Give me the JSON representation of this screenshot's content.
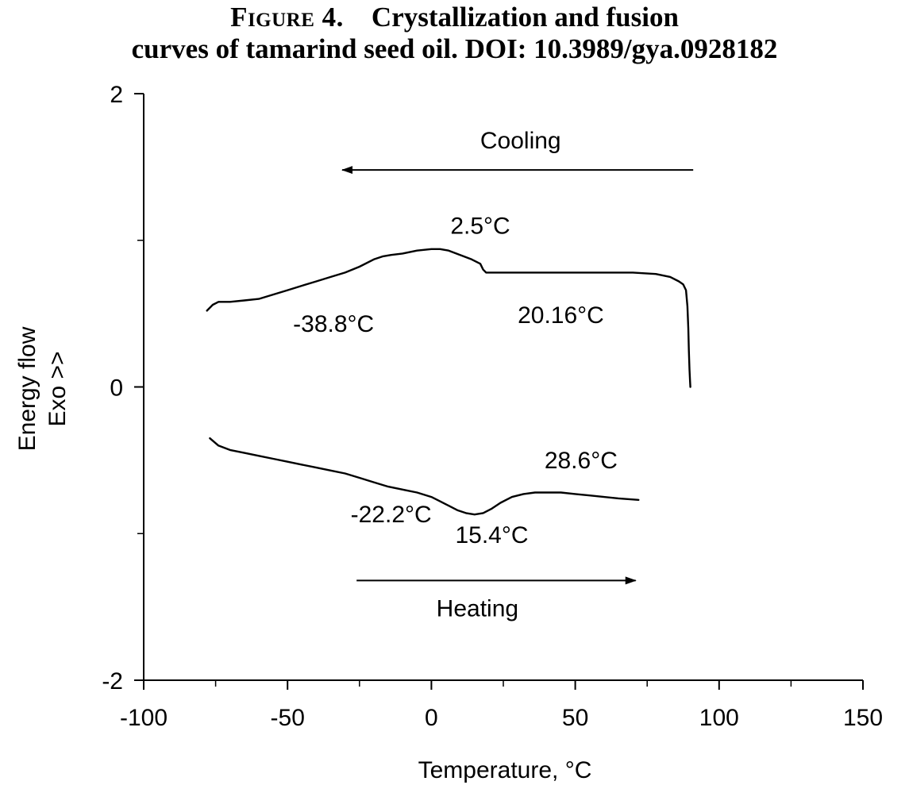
{
  "figure": {
    "label": "Figure 4.",
    "caption_line1": "Crystallization and fusion",
    "caption_line2": "curves of tamarind seed oil. DOI: 10.3989/gya.0928182"
  },
  "chart_data": {
    "type": "line",
    "title": "Figure 4. Crystallization and fusion curves of tamarind seed oil. DOI: 10.3989/gya.0928182",
    "xlabel": "Temperature, °C",
    "ylabel_lines": [
      "Energy flow",
      "Exo >>"
    ],
    "xlim": [
      -100,
      150
    ],
    "ylim": [
      -2,
      2
    ],
    "x_ticks": [
      -100,
      -50,
      0,
      50,
      100,
      150
    ],
    "x_tick_labels": [
      "-100",
      "-50",
      "0",
      "50",
      "100",
      "150"
    ],
    "y_ticks": [
      -2,
      0,
      2
    ],
    "y_tick_labels": [
      "-2",
      "0",
      "2"
    ],
    "x_minor_ticks": [
      -75,
      -25,
      25,
      75,
      125
    ],
    "y_minor_ticks": [
      -1,
      1
    ],
    "grid": false,
    "legend": "none",
    "series": [
      {
        "x": [
          -78,
          -76,
          -74,
          -70,
          -65,
          -60,
          -55,
          -50,
          -45,
          -40,
          -35,
          -30,
          -25,
          -20,
          -17,
          -14,
          -10,
          -5,
          0,
          3,
          6,
          10,
          14,
          17,
          18,
          19,
          25,
          35,
          50,
          60,
          70,
          78,
          83,
          86,
          87.5,
          88.5,
          89,
          89.3,
          89.5,
          89.7,
          89.9,
          90
        ],
        "y": [
          0.52,
          0.56,
          0.58,
          0.58,
          0.59,
          0.6,
          0.63,
          0.66,
          0.69,
          0.72,
          0.75,
          0.78,
          0.82,
          0.87,
          0.89,
          0.9,
          0.91,
          0.93,
          0.94,
          0.94,
          0.93,
          0.9,
          0.87,
          0.84,
          0.8,
          0.78,
          0.78,
          0.78,
          0.78,
          0.78,
          0.78,
          0.77,
          0.75,
          0.72,
          0.7,
          0.66,
          0.55,
          0.4,
          0.25,
          0.12,
          0.04,
          0.0
        ]
      },
      {
        "x": [
          -77,
          -74,
          -70,
          -65,
          -60,
          -55,
          -50,
          -45,
          -40,
          -35,
          -30,
          -25,
          -20,
          -15,
          -10,
          -5,
          0,
          3,
          6,
          9,
          12,
          15,
          18,
          21,
          24,
          28,
          32,
          36,
          40,
          45,
          50,
          55,
          60,
          65,
          72
        ],
        "y": [
          -0.35,
          -0.4,
          -0.43,
          -0.45,
          -0.47,
          -0.49,
          -0.51,
          -0.53,
          -0.55,
          -0.57,
          -0.59,
          -0.62,
          -0.65,
          -0.68,
          -0.7,
          -0.72,
          -0.75,
          -0.78,
          -0.81,
          -0.84,
          -0.86,
          -0.87,
          -0.86,
          -0.83,
          -0.79,
          -0.75,
          -0.73,
          -0.72,
          -0.72,
          -0.72,
          -0.73,
          -0.74,
          -0.75,
          -0.76,
          -0.77
        ]
      }
    ],
    "annotations": [
      {
        "text": "Cooling",
        "x": 31,
        "y": 1.68
      },
      {
        "text": "2.5°C",
        "x": 17,
        "y": 1.1
      },
      {
        "text": "-38.8°C",
        "x": -34,
        "y": 0.43
      },
      {
        "text": "20.16°C",
        "x": 45,
        "y": 0.49
      },
      {
        "text": "28.6°C",
        "x": 52,
        "y": -0.5
      },
      {
        "text": "-22.2°C",
        "x": -14,
        "y": -0.87
      },
      {
        "text": "15.4°C",
        "x": 21,
        "y": -1.01
      },
      {
        "text": "Heating",
        "x": 16,
        "y": -1.51
      }
    ],
    "arrows": [
      {
        "name": "cooling-arrow",
        "from": [
          91,
          1.48
        ],
        "to": [
          -31,
          1.48
        ]
      },
      {
        "name": "heating-arrow",
        "from": [
          -26,
          -1.32
        ],
        "to": [
          71,
          -1.32
        ]
      }
    ]
  }
}
